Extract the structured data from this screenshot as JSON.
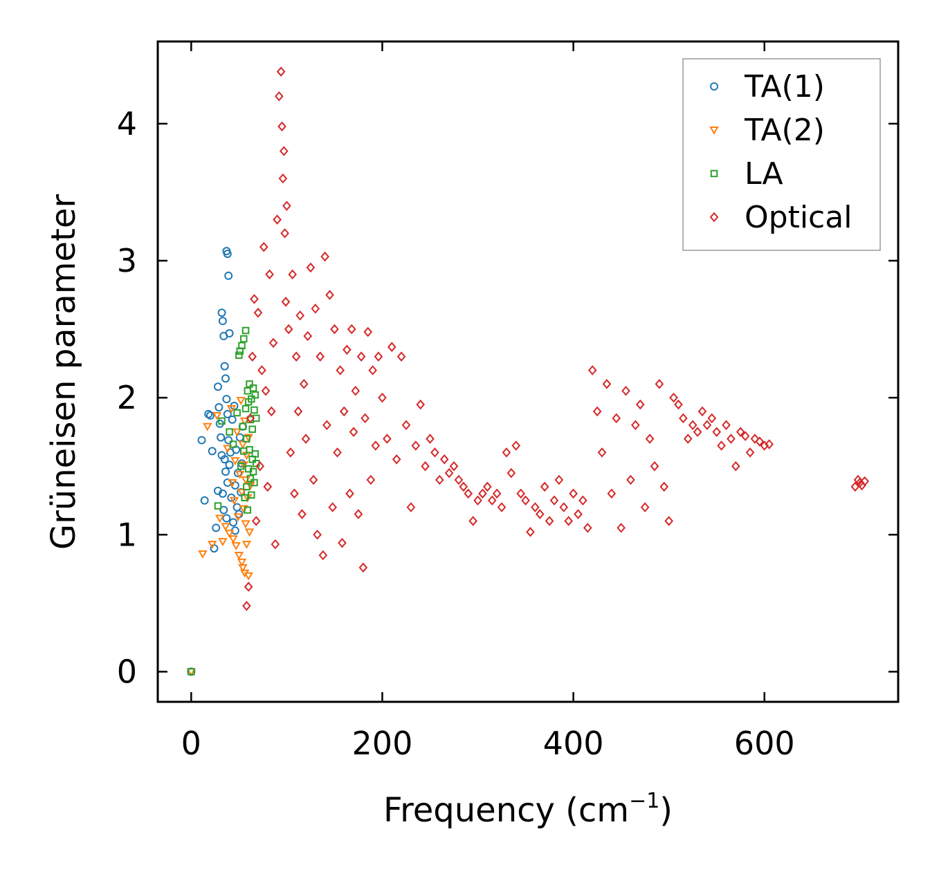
{
  "chart_data": {
    "type": "scatter",
    "title": "",
    "xlabel": "Frequency (cm",
    "xlabel_sup": "−1",
    "xlabel_close": ")",
    "ylabel": "Grüneisen parameter",
    "xlim": [
      -35,
      740
    ],
    "ylim": [
      -0.22,
      4.6
    ],
    "xticks": [
      0,
      200,
      400,
      600
    ],
    "yticks": [
      0,
      1,
      2,
      3,
      4
    ],
    "grid": false,
    "legend_position": "top-right",
    "series": [
      {
        "name": "TA(1)",
        "marker": "circle",
        "color": "#1f77b4",
        "x": [
          0,
          11,
          14,
          18,
          20,
          22,
          24,
          26,
          28,
          28,
          29,
          30,
          31,
          32,
          32,
          33,
          33,
          34,
          34,
          35,
          35,
          36,
          36,
          37,
          37,
          37,
          38,
          38,
          38,
          39,
          39,
          40,
          40,
          41,
          42,
          43,
          44,
          45,
          46,
          46,
          47,
          48,
          49,
          50,
          51,
          52,
          53,
          54
        ],
        "y": [
          0.0,
          1.69,
          1.25,
          1.88,
          1.87,
          1.61,
          0.9,
          1.05,
          1.32,
          2.08,
          1.93,
          1.81,
          1.71,
          2.62,
          1.58,
          2.56,
          1.3,
          2.45,
          1.18,
          2.23,
          1.55,
          2.14,
          1.46,
          3.07,
          1.99,
          1.12,
          3.05,
          1.88,
          1.38,
          2.89,
          1.69,
          2.47,
          1.51,
          1.6,
          1.27,
          1.84,
          1.09,
          1.94,
          1.36,
          1.03,
          1.62,
          1.2,
          1.45,
          1.15,
          1.71,
          1.31,
          1.52,
          1.79
        ]
      },
      {
        "name": "TA(2)",
        "marker": "triangle-down",
        "color": "#ff7f0e",
        "x": [
          0,
          12,
          17,
          22,
          27,
          30,
          33,
          36,
          38,
          40,
          42,
          43,
          44,
          45,
          46,
          47,
          48,
          49,
          50,
          51,
          52,
          53,
          53,
          54,
          54,
          55,
          55,
          56,
          56,
          57,
          57,
          58,
          58,
          59,
          60,
          60,
          61,
          62
        ],
        "y": [
          0.0,
          0.86,
          1.79,
          0.93,
          1.87,
          1.12,
          0.95,
          1.06,
          1.63,
          1.01,
          1.92,
          1.38,
          0.97,
          1.25,
          1.54,
          0.92,
          1.75,
          1.13,
          0.85,
          1.44,
          1.98,
          0.8,
          1.31,
          1.66,
          0.76,
          1.19,
          1.51,
          0.72,
          1.83,
          1.08,
          1.4,
          0.93,
          1.58,
          1.27,
          0.7,
          1.71,
          1.02,
          1.36
        ]
      },
      {
        "name": "LA",
        "marker": "square",
        "color": "#2ca02c",
        "x": [
          0,
          28,
          32,
          40,
          44,
          48,
          50,
          51,
          52,
          53,
          54,
          55,
          55,
          56,
          57,
          57,
          58,
          58,
          59,
          59,
          60,
          60,
          61,
          61,
          62,
          62,
          63,
          63,
          64,
          64,
          65,
          65,
          66,
          66,
          67,
          67,
          68,
          68
        ],
        "y": [
          0.0,
          1.21,
          1.83,
          1.75,
          1.66,
          1.89,
          2.31,
          2.34,
          1.5,
          2.38,
          1.79,
          2.43,
          1.61,
          1.27,
          2.49,
          1.92,
          1.7,
          1.35,
          2.05,
          1.18,
          1.97,
          1.48,
          2.1,
          1.62,
          1.84,
          1.41,
          1.99,
          1.29,
          1.77,
          1.55,
          2.07,
          1.46,
          1.91,
          1.38,
          2.02,
          1.59,
          1.85,
          1.52
        ]
      },
      {
        "name": "Optical",
        "marker": "diamond",
        "color": "#d62728",
        "x": [
          58,
          60,
          62,
          64,
          66,
          68,
          70,
          72,
          74,
          76,
          78,
          80,
          82,
          84,
          86,
          88,
          90,
          92,
          94,
          95,
          96,
          97,
          98,
          99,
          100,
          102,
          104,
          106,
          108,
          110,
          112,
          114,
          116,
          118,
          120,
          122,
          125,
          128,
          130,
          132,
          135,
          138,
          140,
          142,
          145,
          148,
          150,
          153,
          156,
          158,
          160,
          163,
          166,
          168,
          170,
          172,
          175,
          178,
          180,
          182,
          185,
          188,
          190,
          193,
          196,
          200,
          205,
          210,
          215,
          220,
          225,
          230,
          235,
          240,
          245,
          250,
          255,
          260,
          265,
          270,
          275,
          280,
          285,
          290,
          295,
          300,
          305,
          310,
          315,
          320,
          325,
          330,
          335,
          340,
          345,
          350,
          355,
          360,
          365,
          370,
          375,
          380,
          385,
          390,
          395,
          400,
          405,
          410,
          415,
          420,
          425,
          430,
          435,
          440,
          445,
          450,
          455,
          460,
          465,
          470,
          475,
          480,
          485,
          490,
          495,
          500,
          505,
          510,
          515,
          520,
          525,
          530,
          535,
          540,
          545,
          550,
          555,
          560,
          565,
          570,
          575,
          580,
          585,
          590,
          595,
          600,
          605,
          695,
          698,
          700,
          702,
          705
        ],
        "y": [
          0.48,
          0.62,
          1.85,
          2.3,
          2.72,
          1.1,
          2.62,
          1.5,
          2.2,
          3.1,
          2.05,
          1.35,
          2.9,
          1.9,
          2.4,
          0.93,
          3.3,
          4.2,
          4.38,
          3.98,
          3.6,
          3.8,
          3.2,
          2.7,
          3.4,
          2.5,
          1.6,
          2.9,
          1.3,
          2.3,
          1.9,
          2.6,
          1.15,
          2.1,
          1.7,
          2.45,
          2.95,
          1.4,
          2.65,
          1.0,
          2.3,
          0.85,
          3.03,
          1.8,
          2.75,
          1.2,
          2.5,
          1.6,
          2.2,
          0.94,
          1.9,
          2.35,
          1.3,
          2.5,
          1.75,
          2.05,
          1.15,
          2.3,
          0.76,
          1.85,
          2.48,
          1.4,
          2.2,
          1.65,
          2.3,
          2.0,
          1.7,
          2.37,
          1.55,
          2.3,
          1.8,
          1.2,
          1.65,
          1.95,
          1.5,
          1.7,
          1.6,
          1.4,
          1.55,
          1.45,
          1.5,
          1.4,
          1.35,
          1.3,
          1.1,
          1.25,
          1.3,
          1.35,
          1.25,
          1.3,
          1.2,
          1.6,
          1.45,
          1.65,
          1.3,
          1.25,
          1.02,
          1.2,
          1.15,
          1.35,
          1.1,
          1.25,
          1.4,
          1.2,
          1.1,
          1.3,
          1.15,
          1.25,
          1.05,
          2.2,
          1.9,
          1.6,
          2.1,
          1.3,
          1.85,
          1.05,
          2.05,
          1.4,
          1.8,
          1.95,
          1.2,
          1.7,
          1.5,
          2.1,
          1.35,
          1.1,
          2.0,
          1.95,
          1.85,
          1.7,
          1.8,
          1.75,
          1.9,
          1.8,
          1.85,
          1.75,
          1.65,
          1.8,
          1.7,
          1.5,
          1.75,
          1.72,
          1.6,
          1.7,
          1.68,
          1.65,
          1.66,
          1.35,
          1.4,
          1.38,
          1.36,
          1.39
        ]
      }
    ]
  }
}
